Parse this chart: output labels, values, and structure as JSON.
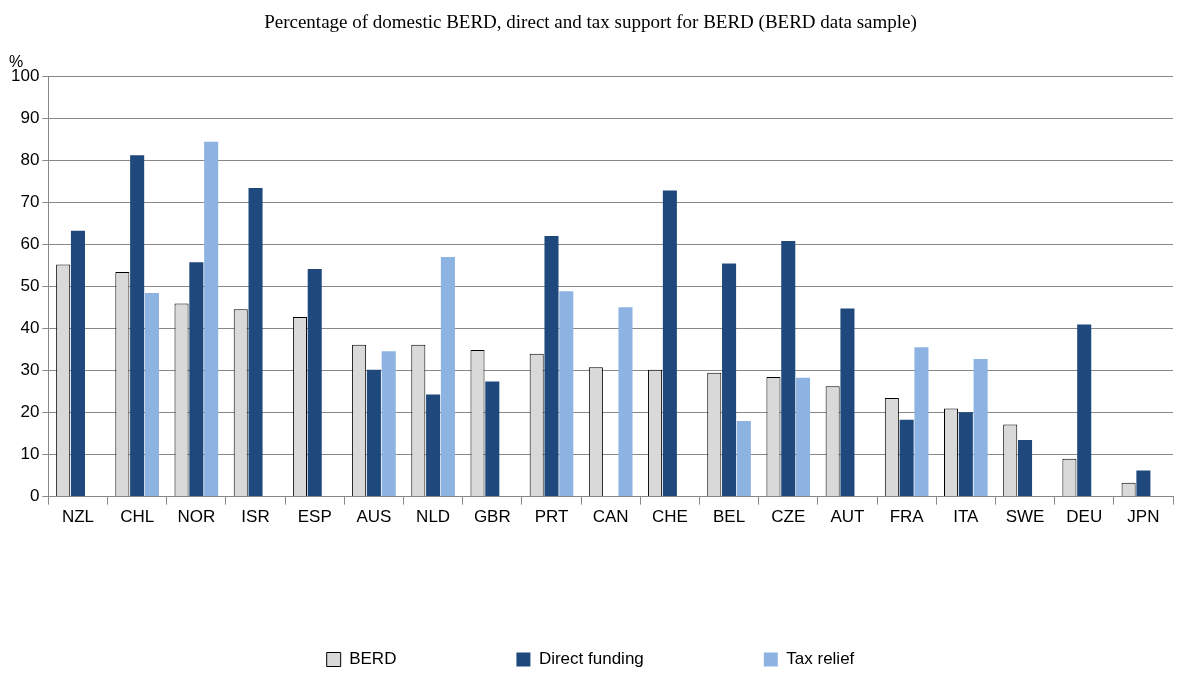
{
  "chart_data": {
    "type": "bar",
    "title": "Percentage of domestic BERD, direct and tax support for BERD (BERD data sample)",
    "ylabel": "%",
    "categories": [
      "NZL",
      "CHL",
      "NOR",
      "ISR",
      "ESP",
      "AUS",
      "NLD",
      "GBR",
      "PRT",
      "CAN",
      "CHE",
      "BEL",
      "CZE",
      "AUT",
      "FRA",
      "ITA",
      "SWE",
      "DEU",
      "JPN"
    ],
    "series": [
      {
        "name": "BERD",
        "color": "#d9d9d9",
        "values": [
          55.3,
          53.5,
          46,
          44.6,
          42.8,
          36.2,
          36.2,
          34.9,
          34,
          30.8,
          30.2,
          29.5,
          28.5,
          26.3,
          23.5,
          21,
          17.2,
          9,
          3.3
        ]
      },
      {
        "name": "Direct funding",
        "color": "#1f497d",
        "values": [
          63.3,
          81.3,
          55.8,
          73.5,
          54.2,
          30.2,
          24.3,
          27.4,
          62.1,
          null,
          72.9,
          55.5,
          60.9,
          44.8,
          18.3,
          20.1,
          13.5,
          41,
          6.2
        ]
      },
      {
        "name": "Tax relief",
        "color": "#8db3e2",
        "values": [
          null,
          48.5,
          84.5,
          null,
          null,
          34.6,
          57.1,
          null,
          48.9,
          45.1,
          null,
          18,
          28.3,
          null,
          35.6,
          32.8,
          null,
          null,
          null
        ]
      }
    ],
    "ylim": [
      0,
      100
    ],
    "yticks": [
      0,
      10,
      20,
      30,
      40,
      50,
      60,
      70,
      80,
      90,
      100
    ],
    "grid": "y",
    "legend": "bottom"
  }
}
